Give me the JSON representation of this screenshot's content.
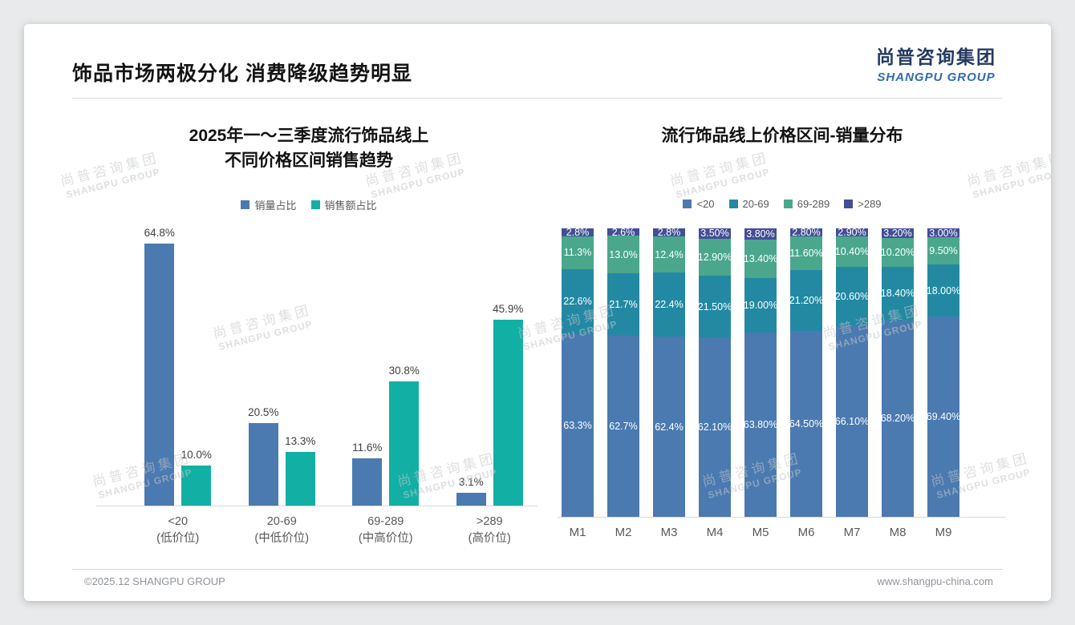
{
  "page": {
    "title": "饰品市场两极分化 消费降级趋势明显",
    "logo": {
      "cn": "尚普咨询集团",
      "en": "SHANGPU GROUP"
    },
    "footer": {
      "copyright": "©2025.12 SHANGPU GROUP",
      "url": "www.shangpu-china.com"
    },
    "watermark": {
      "line1": "尚普咨询集团",
      "line2": "SHANGPU GROUP"
    }
  },
  "colors": {
    "steel_blue": "#4a7ab0",
    "bright_teal": "#12b0a4",
    "mid_teal": "#2389a3",
    "green_teal": "#4aa78c",
    "indigo": "#434e96",
    "axis_gray": "#d9d9d9"
  },
  "chart_data": [
    {
      "type": "bar",
      "title_lines": [
        "2025年一～三季度流行饰品线上",
        "不同价格区间销售趋势"
      ],
      "categories": [
        {
          "line1": "<20",
          "line2": "(低价位)"
        },
        {
          "line1": "20-69",
          "line2": "(中低价位)"
        },
        {
          "line1": "69-289",
          "line2": "(中高价位)"
        },
        {
          "line1": ">289",
          "line2": "(高价位)"
        }
      ],
      "series": [
        {
          "name": "销量占比",
          "color": "#4a7ab0",
          "values": [
            64.8,
            20.5,
            11.6,
            3.1
          ],
          "labels": [
            "64.8%",
            "20.5%",
            "11.6%",
            "3.1%"
          ]
        },
        {
          "name": "销售额占比",
          "color": "#12b0a4",
          "values": [
            10.0,
            13.3,
            30.8,
            45.9
          ],
          "labels": [
            "10.0%",
            "13.3%",
            "30.8%",
            "45.9%"
          ]
        }
      ],
      "ylim": [
        0,
        65
      ],
      "grid": false,
      "legend_position": "top"
    },
    {
      "type": "stacked-bar",
      "title": "流行饰品线上价格区间-销量分布",
      "categories": [
        "M1",
        "M2",
        "M3",
        "M4",
        "M5",
        "M6",
        "M7",
        "M8",
        "M9"
      ],
      "series": [
        {
          "name": "<20",
          "color": "#4a7ab0",
          "values": [
            63.3,
            62.7,
            62.4,
            62.1,
            63.8,
            64.5,
            66.1,
            68.2,
            69.4
          ],
          "labels": [
            "63.3%",
            "62.7%",
            "62.4%",
            "62.10%",
            "63.80%",
            "64.50%",
            "66.10%",
            "68.20%",
            "69.40%"
          ]
        },
        {
          "name": "20-69",
          "color": "#2389a3",
          "values": [
            22.6,
            21.7,
            22.4,
            21.5,
            19.0,
            21.2,
            20.6,
            18.4,
            18.0
          ],
          "labels": [
            "22.6%",
            "21.7%",
            "22.4%",
            "21.50%",
            "19.00%",
            "21.20%",
            "20.60%",
            "18.40%",
            "18.00%"
          ]
        },
        {
          "name": "69-289",
          "color": "#4aa78c",
          "values": [
            11.3,
            13.0,
            12.4,
            12.9,
            13.4,
            11.6,
            10.4,
            10.2,
            9.5
          ],
          "labels": [
            "11.3%",
            "13.0%",
            "12.4%",
            "12.90%",
            "13.40%",
            "11.60%",
            "10.40%",
            "10.20%",
            "9.50%"
          ]
        },
        {
          "name": ">289",
          "color": "#434e96",
          "values": [
            2.8,
            2.6,
            2.8,
            3.5,
            3.8,
            2.8,
            2.9,
            3.2,
            3.0
          ],
          "labels": [
            "2.8%",
            "2.6%",
            "2.8%",
            "3.50%",
            "3.80%",
            "2.80%",
            "2.90%",
            "3.20%",
            "3.00%"
          ]
        }
      ],
      "ylim": [
        0,
        100
      ],
      "grid": false,
      "legend_position": "top"
    }
  ]
}
